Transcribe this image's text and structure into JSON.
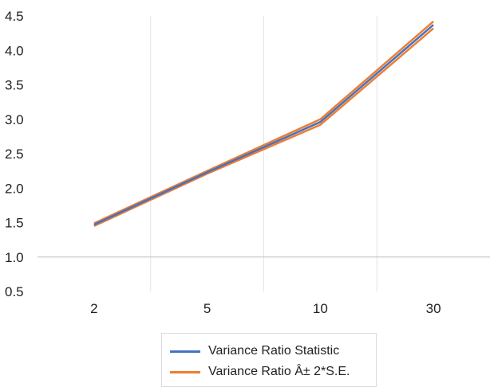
{
  "chart_data": {
    "type": "line",
    "categories": [
      "2",
      "5",
      "10",
      "30"
    ],
    "ylim": [
      0.5,
      4.5
    ],
    "yticks": [
      "0.5",
      "1.0",
      "1.5",
      "2.0",
      "2.5",
      "3.0",
      "3.5",
      "4.0",
      "4.5"
    ],
    "ytick_values": [
      0.5,
      1.0,
      1.5,
      2.0,
      2.5,
      3.0,
      3.5,
      4.0,
      4.5
    ],
    "series": [
      {
        "name": "Variance Ratio Statistic",
        "color": "#4472C4",
        "values": [
          1.47,
          2.23,
          2.96,
          4.37
        ]
      },
      {
        "name": "Variance Ratio Â± 2*S.E.",
        "color": "#ED7D31",
        "values": [
          1.49,
          2.25,
          3.0,
          4.42
        ]
      },
      {
        "name": "",
        "color": "#ED7D31",
        "values": [
          1.45,
          2.21,
          2.92,
          4.32
        ]
      }
    ],
    "legend_position": "bottom",
    "grid": "vertical"
  }
}
